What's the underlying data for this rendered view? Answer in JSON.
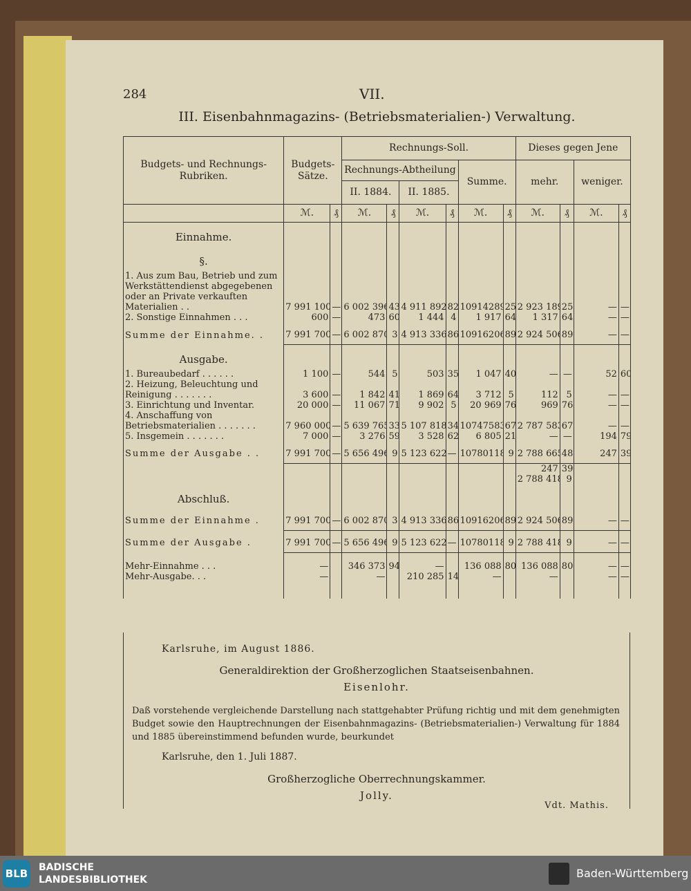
{
  "header": {
    "page_number": "284",
    "section": "VII.",
    "title": "III. Eisenbahnmagazins- (Betriebsmaterialien-) Verwaltung."
  },
  "table": {
    "headers": {
      "rubriken": "Budgets- und Rechnungs-Rubriken.",
      "budget": "Budgets-Sätze.",
      "soll": "Rechnungs-Soll.",
      "abtheilung": "Rechnungs-Abtheilung",
      "y1884": "II. 1884.",
      "y1885": "II. 1885.",
      "summe": "Summe.",
      "vergleich": "Dieses gegen Jene",
      "mehr": "mehr.",
      "weniger": "weniger."
    },
    "units": [
      "ℳ.",
      "₰"
    ],
    "rows": [
      {
        "label": "Einnahme."
      },
      {
        "label": "§."
      },
      {
        "label": "1. Aus zum Bau, Betrieb und zum Werkstättendienst abgegebenen oder an Private verkauften Materialien . .",
        "cells": [
          "7 991 100",
          "—",
          "6 002 396",
          "43",
          "4 911 892",
          "82",
          "10914289",
          "25",
          "2 923 189",
          "25",
          "—",
          "—"
        ]
      },
      {
        "label": "2. Sonstige Einnahmen . . .",
        "cells": [
          "600",
          "—",
          "473",
          "60",
          "1 444",
          "4",
          "1 917",
          "64",
          "1 317",
          "64",
          "—",
          "—"
        ]
      },
      {
        "label": "Summe der Einnahme. .",
        "cells": [
          "7 991 700",
          "—",
          "6 002 870",
          "3",
          "4 913 336",
          "86",
          "10916206",
          "89",
          "2 924 506",
          "89",
          "—",
          "—"
        ]
      },
      {
        "label": "Ausgabe."
      },
      {
        "label": "1. Bureaubedarf . . . . . .",
        "cells": [
          "1 100",
          "—",
          "544",
          "5",
          "503",
          "35",
          "1 047",
          "40",
          "—",
          "—",
          "52",
          "60"
        ]
      },
      {
        "label": "2. Heizung, Beleuchtung und Reinigung . . . . . . .",
        "cells": [
          "3 600",
          "—",
          "1 842",
          "41",
          "1 869",
          "64",
          "3 712",
          "5",
          "112",
          "5",
          "—",
          "—"
        ]
      },
      {
        "label": "3. Einrichtung und Inventar.",
        "cells": [
          "20 000",
          "—",
          "11 067",
          "71",
          "9 902",
          "5",
          "20 969",
          "76",
          "969",
          "76",
          "—",
          "—"
        ]
      },
      {
        "label": "4. Anschaffung von Betriebsmaterialien . . . . . . .",
        "cells": [
          "7 960 000",
          "—",
          "5 639 765",
          "33",
          "5 107 818",
          "34",
          "10747583",
          "67",
          "2 787 583",
          "67",
          "—",
          "—"
        ]
      },
      {
        "label": "5. Insgemein . . . . . . .",
        "cells": [
          "7 000",
          "—",
          "3 276",
          "59",
          "3 528",
          "62",
          "6 805",
          "21",
          "—",
          "—",
          "194",
          "79"
        ]
      },
      {
        "label": "Summe der Ausgabe . .",
        "cells": [
          "7 991 700",
          "—",
          "5 656 496",
          "9",
          "5 123 622",
          "—",
          "10780118",
          "9",
          "2 788 665",
          "48",
          "247",
          "39"
        ]
      },
      {
        "label": null,
        "cells": [
          null,
          null,
          null,
          null,
          null,
          null,
          null,
          null,
          "247",
          "39",
          null,
          null
        ]
      },
      {
        "label": null,
        "cells": [
          null,
          null,
          null,
          null,
          null,
          null,
          null,
          null,
          "2 788 418",
          "9",
          null,
          null
        ]
      },
      {
        "label": "Abschluß."
      },
      {
        "label": "Summe der Einnahme .",
        "cells": [
          "7 991 700",
          "—",
          "6 002 870",
          "3",
          "4 913 336",
          "86",
          "10916206",
          "89",
          "2 924 506",
          "89",
          "—",
          "—"
        ]
      },
      {
        "label": "Summe der Ausgabe .",
        "cells": [
          "7 991 700",
          "—",
          "5 656 496",
          "9",
          "5 123 622",
          "—",
          "10780118",
          "9",
          "2 788 418",
          "9",
          "—",
          "—"
        ]
      },
      {
        "label": "Mehr-Einnahme . . .",
        "cells": [
          "—",
          null,
          "346 373",
          "94",
          "—",
          null,
          "136 088",
          "80",
          "136 088",
          "80",
          "—",
          "—"
        ]
      },
      {
        "label": "Mehr-Ausgabe. . .",
        "cells": [
          "—",
          null,
          "—",
          null,
          "210 285",
          "14",
          "—",
          null,
          "—",
          null,
          "—",
          "—"
        ]
      }
    ]
  },
  "footer": {
    "place_date_1": "Karlsruhe, im August 1886.",
    "authority_1": "Generaldirektion der Großherzoglichen Staatseisenbahnen.",
    "signature_1": "Eisenlohr.",
    "certification": "Daß vorstehende vergleichende Darstellung nach stattgehabter Prüfung richtig und mit dem genehmigten Budget sowie den Hauptrechnungen der Eisenbahnmagazins- (Betriebsmaterialien-) Verwaltung für 1884 und 1885 übereinstimmend befunden wurde, beurkundet",
    "place_date_2": "Karlsruhe, den 1. Juli 1887.",
    "authority_2": "Großherzogliche Oberrechnungskammer.",
    "signature_2": "Jolly.",
    "vidit": "Vdt. Mathis."
  },
  "footer_bar": {
    "logo": "BLB",
    "library_line_1": "BADISCHE",
    "library_line_2": "LANDESBIBLIOTHEK",
    "state": "Baden-Württemberg"
  }
}
